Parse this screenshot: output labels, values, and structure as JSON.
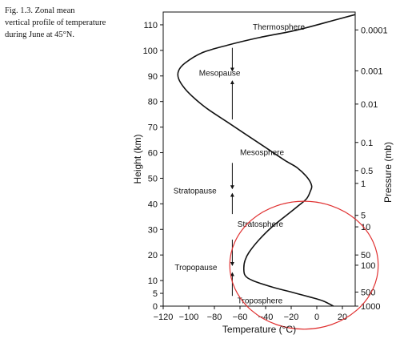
{
  "caption": {
    "lines": [
      "Fig. 1.3.  Zonal mean",
      "vertical profile of temperature",
      "during June at 45°N."
    ]
  },
  "chart_data": {
    "type": "line",
    "xlabel": "Temperature (°C)",
    "ylabel": "Height (km)",
    "y2label": "Pressure (mb)",
    "xlim": [
      -120,
      30
    ],
    "ylim": [
      0,
      115
    ],
    "xticks": [
      -120,
      -100,
      -80,
      -60,
      -40,
      -20,
      0,
      20
    ],
    "xtick_labels": [
      "−120",
      "−100",
      "−80",
      "−60",
      "−40",
      "−20",
      "0",
      "20"
    ],
    "yticks": [
      0,
      5,
      10,
      20,
      30,
      40,
      50,
      60,
      70,
      80,
      90,
      100,
      110
    ],
    "y2ticks": [
      {
        "label": "0.0001",
        "height": 108
      },
      {
        "label": "0.001",
        "height": 92
      },
      {
        "label": "0.01",
        "height": 79
      },
      {
        "label": "0.1",
        "height": 64
      },
      {
        "label": "0.5",
        "height": 53
      },
      {
        "label": "1",
        "height": 48
      },
      {
        "label": "5",
        "height": 35.5
      },
      {
        "label": "10",
        "height": 31
      },
      {
        "label": "50",
        "height": 20
      },
      {
        "label": "100",
        "height": 16
      },
      {
        "label": "500",
        "height": 5.5
      },
      {
        "label": "1000",
        "height": 0
      }
    ],
    "series": [
      {
        "x": [
          13,
          5,
          -5,
          -20,
          -35,
          -50,
          -56,
          -57,
          -56,
          -53,
          -45,
          -35,
          -25,
          -15,
          -8,
          -5,
          -4,
          -7,
          -15,
          -25,
          -40,
          -55,
          -70,
          -85,
          -95,
          -103,
          -108,
          -108,
          -103,
          -90,
          -70,
          -45,
          -15,
          15,
          30
        ],
        "y": [
          0,
          2,
          3.5,
          5.5,
          7.5,
          10,
          12,
          15,
          18,
          21,
          26,
          31,
          35,
          39,
          42,
          45,
          47,
          50,
          54,
          57,
          62,
          67,
          72,
          77,
          81,
          85,
          89,
          92,
          95,
          99,
          102,
          105,
          108,
          112,
          114
        ]
      }
    ],
    "annotations": [
      {
        "text": "Thermosphere",
        "x": -50,
        "y": 109
      },
      {
        "text": "Mesopause",
        "x": -92,
        "y": 91
      },
      {
        "text": "Mesosphere",
        "x": -60,
        "y": 60
      },
      {
        "text": "Stratopause",
        "x": -112,
        "y": 45
      },
      {
        "text": "Stratosphere",
        "x": -62,
        "y": 32
      },
      {
        "text": "Tropopause",
        "x": -111,
        "y": 15
      },
      {
        "text": "Troposphere",
        "x": -62,
        "y": 2
      }
    ],
    "arrows": [
      {
        "x": -66,
        "from": 101,
        "to": 92
      },
      {
        "x": -66,
        "from": 73,
        "to": 88
      },
      {
        "x": -66,
        "from": 56,
        "to": 46
      },
      {
        "x": -66,
        "from": 36,
        "to": 44
      },
      {
        "x": -66,
        "from": 26,
        "to": 16
      },
      {
        "x": -66,
        "from": 4,
        "to": 13
      }
    ],
    "highlight": {
      "cx": -10,
      "cy": 16,
      "rx": 58,
      "ry": 25,
      "color": "#e03131"
    }
  }
}
